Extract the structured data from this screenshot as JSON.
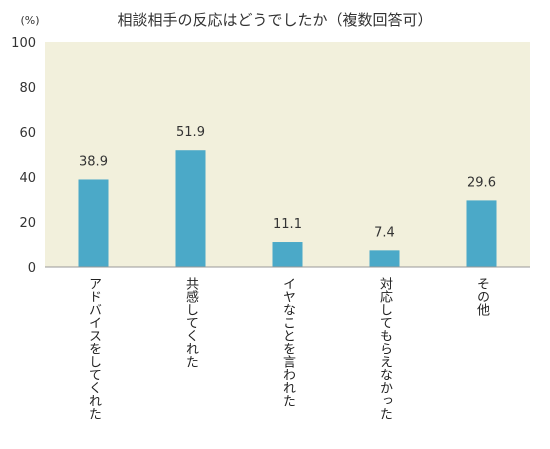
{
  "chart_data": {
    "type": "bar",
    "title": "相談相手の反応はどうでしたか（複数回答可）",
    "ylabel": "(%)",
    "xlabel": "",
    "ylim": [
      0,
      100
    ],
    "yticks": [
      0,
      20,
      40,
      60,
      80,
      100
    ],
    "categories": [
      "アドバイスをしてくれた",
      "共感してくれた",
      "イヤなことを言われた",
      "対応してもらえなかった",
      "その他"
    ],
    "values": [
      38.9,
      51.9,
      11.1,
      7.4,
      29.6
    ],
    "value_labels": [
      "38.9",
      "51.9",
      "11.1",
      "7.4",
      "29.6"
    ],
    "grid": false,
    "legend": "none",
    "colors": {
      "plot_background": "#f2f0dc",
      "bar": "#4ba9c8",
      "axis": "#999999"
    }
  }
}
